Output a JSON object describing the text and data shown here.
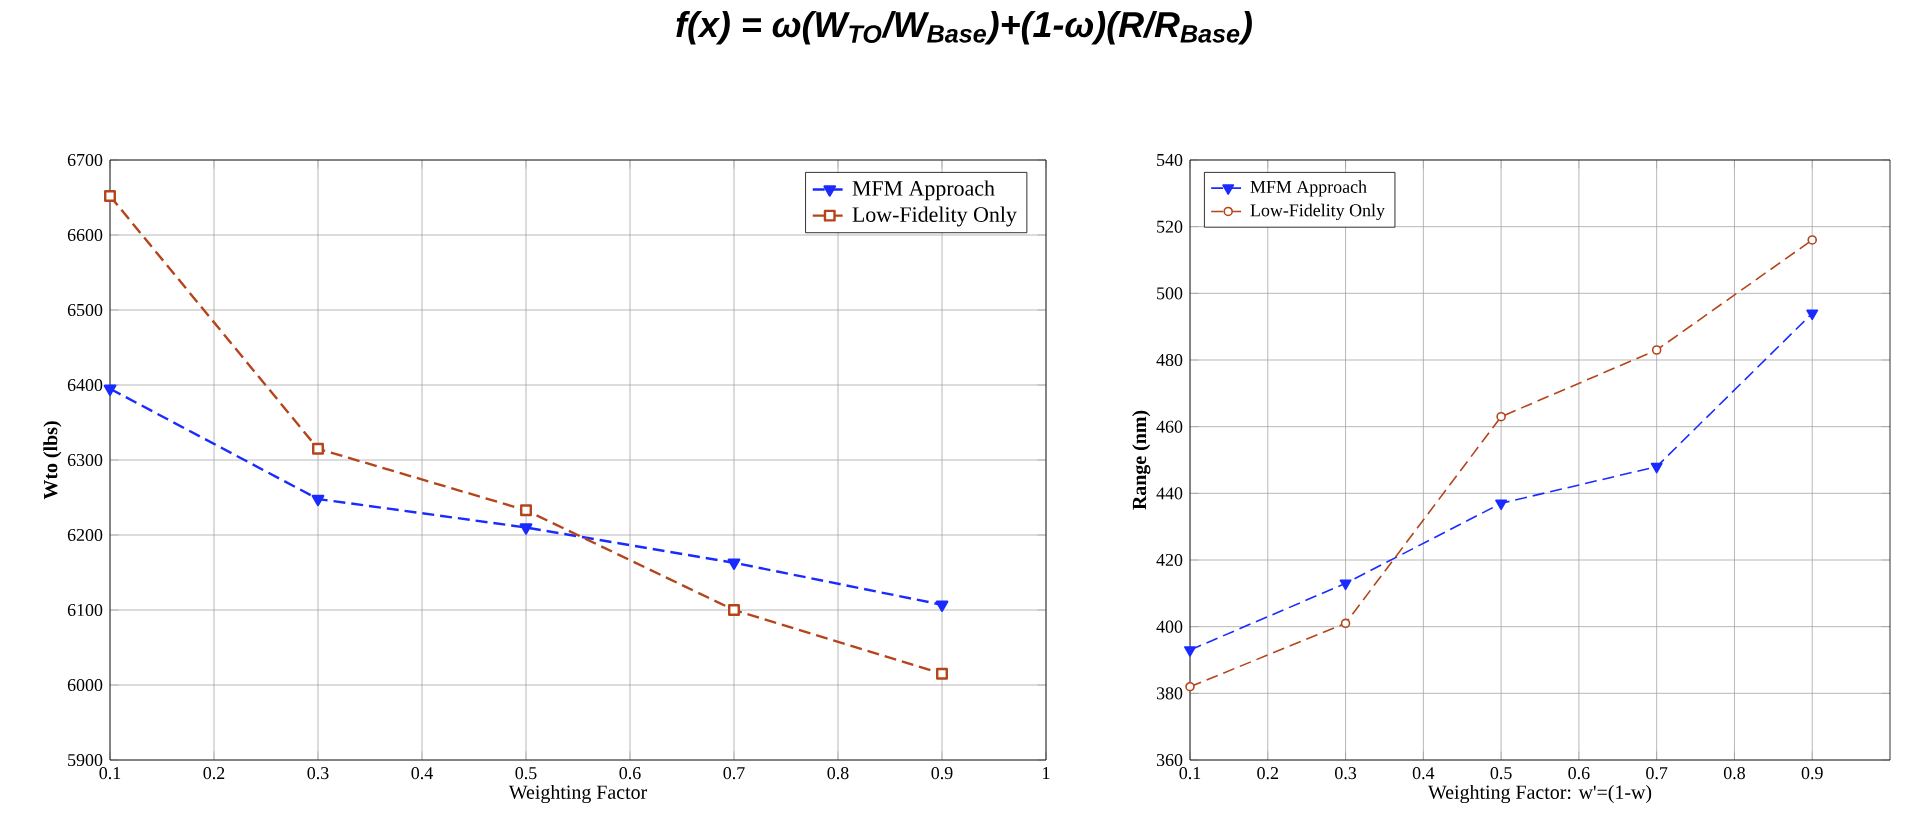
{
  "chart_data": [
    {
      "type": "line",
      "title": "f(x) = ω(W$_{TO}$/W$_{Base}$)+(1-ω)(R/R$_{Base}$)",
      "xlabel": "Weighting Factor",
      "ylabel": "Wto (lbs)",
      "x": [
        0.1,
        0.3,
        0.5,
        0.7,
        0.9
      ],
      "series": [
        {
          "name": "MFM Approach",
          "color": "#1a2bff",
          "marker": "triangle",
          "values": [
            6395,
            6248,
            6210,
            6163,
            6107
          ]
        },
        {
          "name": "Low-Fidelity Only",
          "color": "#b5441a",
          "marker": "square",
          "values": [
            6652,
            6315,
            6233,
            6100,
            6015
          ]
        }
      ],
      "xlim": [
        0.1,
        1
      ],
      "xticks": [
        0.1,
        0.2,
        0.3,
        0.4,
        0.5,
        0.6,
        0.7,
        0.8,
        0.9,
        1
      ],
      "ylim": [
        5900,
        6700
      ],
      "yticks": [
        5900,
        6000,
        6100,
        6200,
        6300,
        6400,
        6500,
        6600,
        6700
      ],
      "grid": true,
      "legend": "top right",
      "line_style": "dashed"
    },
    {
      "type": "line",
      "xlabel": "Weighting Factor: w'=(1-w)",
      "ylabel": "Range (nm)",
      "x": [
        0.1,
        0.3,
        0.5,
        0.7,
        0.9
      ],
      "series": [
        {
          "name": "MFM Approach",
          "color": "#1a2bff",
          "marker": "triangle",
          "values": [
            393,
            413,
            437,
            448,
            494
          ]
        },
        {
          "name": "Low-Fidelity Only",
          "color": "#b5441a",
          "marker": "circle",
          "values": [
            382,
            401,
            463,
            483,
            516
          ]
        }
      ],
      "xlim": [
        0.1,
        1
      ],
      "xticks": [
        0.1,
        0.2,
        0.3,
        0.4,
        0.5,
        0.6,
        0.7,
        0.8,
        0.9
      ],
      "ylim": [
        360,
        540
      ],
      "yticks": [
        360,
        380,
        400,
        420,
        440,
        460,
        480,
        500,
        520,
        540
      ],
      "grid": true,
      "legend": "top left",
      "line_style": "dashed"
    }
  ]
}
